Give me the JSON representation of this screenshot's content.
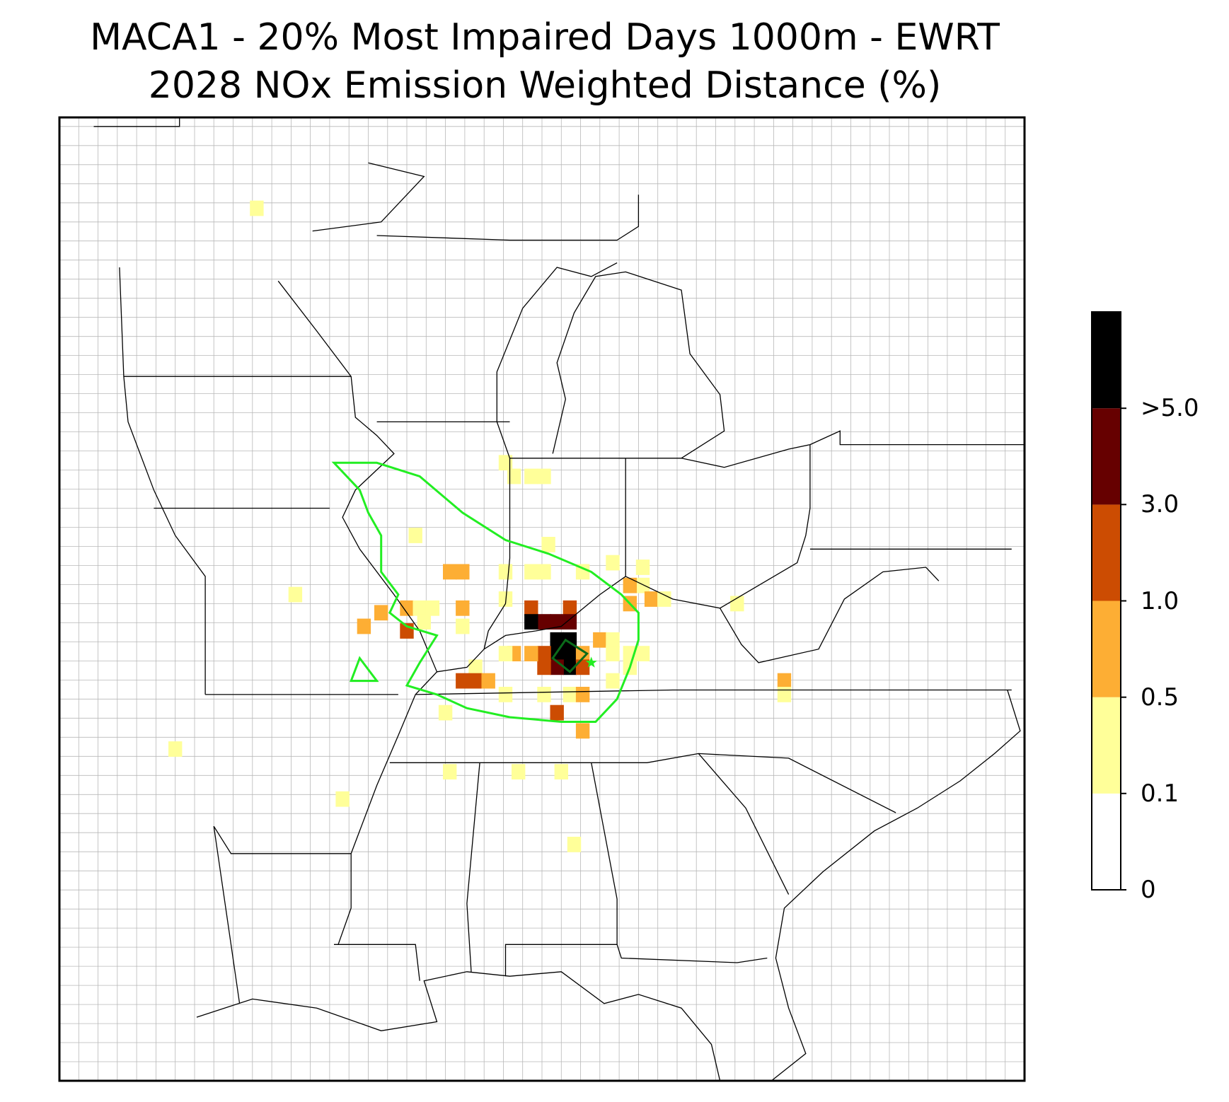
{
  "title_line1": "MACA1 - 20% Most Impaired Days 1000m - EWRT",
  "title_line2": "2028 NOx Emission Weighted Distance (%)",
  "colorbar": {
    "bins": [
      {
        "lower": "0",
        "color": "#ffffff"
      },
      {
        "lower": "0.1",
        "color": "#ffff99"
      },
      {
        "lower": "0.5",
        "color": "#fdae34"
      },
      {
        "lower": "1.0",
        "color": "#cc4c02"
      },
      {
        "lower": "3.0",
        "color": "#660000"
      },
      {
        "lower": ">5.0",
        "color": "#000000"
      }
    ],
    "tick_labels": [
      "0",
      "0.1",
      "0.5",
      "1.0",
      "3.0",
      ">5.0"
    ]
  },
  "colors": {
    "county_lines": "#a0a0a0",
    "state_lines": "#000000",
    "outer_contour": "#22ee22",
    "inner_contour": "#0b6b1a",
    "site_marker": "#22ee22"
  },
  "cells": [
    {
      "lon": -93.4,
      "lat": 47.2,
      "bin": 1
    },
    {
      "lon": -87.6,
      "lat": 41.6,
      "bin": 1
    },
    {
      "lon": -87.4,
      "lat": 41.3,
      "bin": 1
    },
    {
      "lon": -87.0,
      "lat": 41.3,
      "bin": 1
    },
    {
      "lon": -86.7,
      "lat": 41.3,
      "bin": 1
    },
    {
      "lon": -89.7,
      "lat": 40.0,
      "bin": 1
    },
    {
      "lon": -86.6,
      "lat": 39.8,
      "bin": 1
    },
    {
      "lon": -88.9,
      "lat": 39.2,
      "bin": 2
    },
    {
      "lon": -88.6,
      "lat": 39.2,
      "bin": 2
    },
    {
      "lon": -87.6,
      "lat": 39.2,
      "bin": 1
    },
    {
      "lon": -87.0,
      "lat": 39.2,
      "bin": 1
    },
    {
      "lon": -86.7,
      "lat": 39.2,
      "bin": 1
    },
    {
      "lon": -85.8,
      "lat": 39.2,
      "bin": 1
    },
    {
      "lon": -85.1,
      "lat": 39.4,
      "bin": 1
    },
    {
      "lon": -84.4,
      "lat": 39.3,
      "bin": 1
    },
    {
      "lon": -84.4,
      "lat": 38.9,
      "bin": 1
    },
    {
      "lon": -84.7,
      "lat": 38.9,
      "bin": 2
    },
    {
      "lon": -84.7,
      "lat": 38.5,
      "bin": 2
    },
    {
      "lon": -84.2,
      "lat": 38.6,
      "bin": 2
    },
    {
      "lon": -83.9,
      "lat": 38.6,
      "bin": 1
    },
    {
      "lon": -82.2,
      "lat": 38.5,
      "bin": 1
    },
    {
      "lon": -92.5,
      "lat": 38.7,
      "bin": 1
    },
    {
      "lon": -90.5,
      "lat": 38.3,
      "bin": 2
    },
    {
      "lon": -89.9,
      "lat": 38.4,
      "bin": 2
    },
    {
      "lon": -89.6,
      "lat": 38.4,
      "bin": 1
    },
    {
      "lon": -89.5,
      "lat": 38.1,
      "bin": 1
    },
    {
      "lon": -89.3,
      "lat": 38.4,
      "bin": 1
    },
    {
      "lon": -88.6,
      "lat": 38.4,
      "bin": 2
    },
    {
      "lon": -88.6,
      "lat": 38.0,
      "bin": 1
    },
    {
      "lon": -90.9,
      "lat": 38.0,
      "bin": 2
    },
    {
      "lon": -89.9,
      "lat": 37.9,
      "bin": 3
    },
    {
      "lon": -87.6,
      "lat": 38.6,
      "bin": 1
    },
    {
      "lon": -87.0,
      "lat": 38.4,
      "bin": 3
    },
    {
      "lon": -86.7,
      "lat": 38.1,
      "bin": 4
    },
    {
      "lon": -86.4,
      "lat": 38.1,
      "bin": 4
    },
    {
      "lon": -86.1,
      "lat": 38.4,
      "bin": 3
    },
    {
      "lon": -86.1,
      "lat": 38.1,
      "bin": 4
    },
    {
      "lon": -87.0,
      "lat": 38.1,
      "bin": 5
    },
    {
      "lon": -86.4,
      "lat": 37.7,
      "bin": 5
    },
    {
      "lon": -86.1,
      "lat": 37.7,
      "bin": 5
    },
    {
      "lon": -86.4,
      "lat": 37.4,
      "bin": 5
    },
    {
      "lon": -86.1,
      "lat": 37.4,
      "bin": 5
    },
    {
      "lon": -86.1,
      "lat": 37.1,
      "bin": 5
    },
    {
      "lon": -86.4,
      "lat": 37.1,
      "bin": 4
    },
    {
      "lon": -86.7,
      "lat": 37.4,
      "bin": 3
    },
    {
      "lon": -86.7,
      "lat": 37.1,
      "bin": 3
    },
    {
      "lon": -87.0,
      "lat": 37.4,
      "bin": 2
    },
    {
      "lon": -87.4,
      "lat": 37.4,
      "bin": 2
    },
    {
      "lon": -87.6,
      "lat": 37.4,
      "bin": 1
    },
    {
      "lon": -85.8,
      "lat": 37.4,
      "bin": 2
    },
    {
      "lon": -85.8,
      "lat": 37.1,
      "bin": 3
    },
    {
      "lon": -85.4,
      "lat": 37.7,
      "bin": 2
    },
    {
      "lon": -85.1,
      "lat": 37.7,
      "bin": 1
    },
    {
      "lon": -85.1,
      "lat": 37.4,
      "bin": 1
    },
    {
      "lon": -84.7,
      "lat": 37.4,
      "bin": 1
    },
    {
      "lon": -84.4,
      "lat": 37.4,
      "bin": 1
    },
    {
      "lon": -84.7,
      "lat": 37.1,
      "bin": 1
    },
    {
      "lon": -85.1,
      "lat": 36.8,
      "bin": 1
    },
    {
      "lon": -88.3,
      "lat": 37.1,
      "bin": 1
    },
    {
      "lon": -88.6,
      "lat": 36.8,
      "bin": 3
    },
    {
      "lon": -88.3,
      "lat": 36.8,
      "bin": 3
    },
    {
      "lon": -88.0,
      "lat": 36.8,
      "bin": 2
    },
    {
      "lon": -87.6,
      "lat": 36.5,
      "bin": 1
    },
    {
      "lon": -86.7,
      "lat": 36.5,
      "bin": 1
    },
    {
      "lon": -86.1,
      "lat": 36.5,
      "bin": 1
    },
    {
      "lon": -85.8,
      "lat": 36.5,
      "bin": 2
    },
    {
      "lon": -86.4,
      "lat": 36.1,
      "bin": 3
    },
    {
      "lon": -89.0,
      "lat": 36.1,
      "bin": 1
    },
    {
      "lon": -85.8,
      "lat": 35.7,
      "bin": 2
    },
    {
      "lon": -81.1,
      "lat": 36.8,
      "bin": 2
    },
    {
      "lon": -81.1,
      "lat": 36.5,
      "bin": 1
    },
    {
      "lon": -95.3,
      "lat": 35.3,
      "bin": 1
    },
    {
      "lon": -88.9,
      "lat": 34.8,
      "bin": 1
    },
    {
      "lon": -87.3,
      "lat": 34.8,
      "bin": 1
    },
    {
      "lon": -86.3,
      "lat": 34.8,
      "bin": 1
    },
    {
      "lon": -91.4,
      "lat": 34.2,
      "bin": 1
    },
    {
      "lon": -86.0,
      "lat": 33.2,
      "bin": 1
    }
  ],
  "outer_contour": [
    [
      -91.6,
      41.6
    ],
    [
      -90.6,
      41.6
    ],
    [
      -89.6,
      41.3
    ],
    [
      -88.6,
      40.5
    ],
    [
      -87.6,
      39.9
    ],
    [
      -86.6,
      39.6
    ],
    [
      -85.6,
      39.2
    ],
    [
      -84.9,
      38.7
    ],
    [
      -84.5,
      38.3
    ],
    [
      -84.5,
      37.7
    ],
    [
      -84.7,
      37.1
    ],
    [
      -85.0,
      36.4
    ],
    [
      -85.5,
      35.9
    ],
    [
      -86.3,
      35.9
    ],
    [
      -87.5,
      36.0
    ],
    [
      -88.5,
      36.2
    ],
    [
      -89.2,
      36.5
    ],
    [
      -89.9,
      36.7
    ],
    [
      -89.6,
      37.2
    ],
    [
      -89.2,
      37.8
    ],
    [
      -89.9,
      38.0
    ],
    [
      -90.3,
      38.3
    ],
    [
      -90.1,
      38.7
    ],
    [
      -90.5,
      39.2
    ],
    [
      -90.5,
      40.0
    ],
    [
      -90.8,
      40.5
    ],
    [
      -91.0,
      41.0
    ],
    [
      -91.6,
      41.6
    ]
  ],
  "small_contour": [
    [
      -91.0,
      37.3
    ],
    [
      -90.6,
      36.8
    ],
    [
      -91.2,
      36.8
    ],
    [
      -91.0,
      37.3
    ]
  ],
  "inner_contour": [
    [
      -86.2,
      37.7
    ],
    [
      -85.7,
      37.4
    ],
    [
      -86.1,
      37.0
    ],
    [
      -86.5,
      37.3
    ],
    [
      -86.2,
      37.7
    ]
  ],
  "site": {
    "lon": -85.6,
    "lat": 37.2
  }
}
